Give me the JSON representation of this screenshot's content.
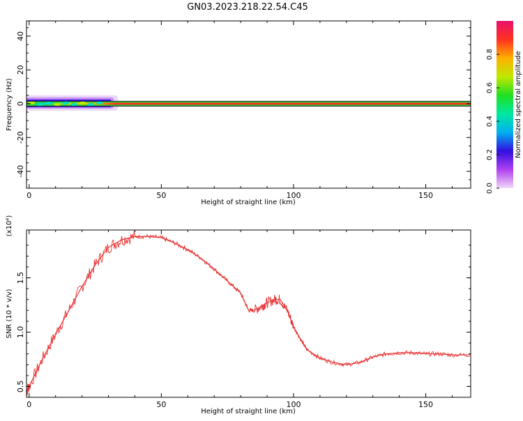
{
  "title": "GN03.2023.218.22.54.C45",
  "chart_data": [
    {
      "type": "heatmap",
      "xlabel": "Height of straight line (km)",
      "ylabel": "Frequency (Hz)",
      "xlim": [
        -1,
        167
      ],
      "ylim": [
        -50,
        49
      ],
      "xticks": [
        0,
        50,
        100,
        150
      ],
      "yticks": [
        40,
        20,
        0,
        -20,
        -40
      ],
      "colorbar": {
        "label": "Normalized spectral amplitude",
        "range": [
          0,
          1
        ],
        "ticks": [
          "0.0",
          "0.2",
          "0.4",
          "0.6",
          "0.8"
        ],
        "colors": [
          "#f0d8f8",
          "#b040f0",
          "#3010e0",
          "#00b0f0",
          "#00e8a0",
          "#20e020",
          "#c0e800",
          "#ffb000",
          "#ff3020",
          "#e8106c"
        ]
      },
      "band": {
        "x_range": [
          -1,
          167
        ],
        "y_range": [
          -2,
          2
        ],
        "dominant_frequency_hz": 0,
        "note_region_x": [
          -1,
          32
        ]
      }
    },
    {
      "type": "line",
      "xlabel": "Height of straight line (km)",
      "ylabel": "SNR (10 * v/v)",
      "scale_label": "(x10⁴)",
      "xlim": [
        -1,
        167
      ],
      "ylim": [
        0.4,
        1.94
      ],
      "xticks": [
        0,
        50,
        100,
        150
      ],
      "yticks": [
        "0.5",
        "1.0",
        "1.5"
      ],
      "ytick_values": [
        0.5,
        1.0,
        1.5
      ],
      "series": [
        {
          "color": "#e83030",
          "x": [
            -1,
            0,
            5,
            10,
            15,
            20,
            25,
            30,
            35,
            40,
            45,
            50,
            55,
            60,
            65,
            70,
            75,
            80,
            83,
            85,
            88,
            90,
            93,
            95,
            98,
            100,
            103,
            105,
            110,
            115,
            120,
            125,
            130,
            135,
            140,
            145,
            150,
            155,
            160,
            167
          ],
          "y": [
            0.46,
            0.5,
            0.75,
            0.98,
            1.2,
            1.42,
            1.62,
            1.78,
            1.85,
            1.88,
            1.88,
            1.87,
            1.82,
            1.76,
            1.68,
            1.58,
            1.47,
            1.36,
            1.2,
            1.2,
            1.24,
            1.27,
            1.3,
            1.3,
            1.18,
            1.05,
            0.92,
            0.84,
            0.76,
            0.72,
            0.7,
            0.72,
            0.77,
            0.8,
            0.81,
            0.81,
            0.8,
            0.8,
            0.79,
            0.79
          ]
        }
      ]
    }
  ]
}
